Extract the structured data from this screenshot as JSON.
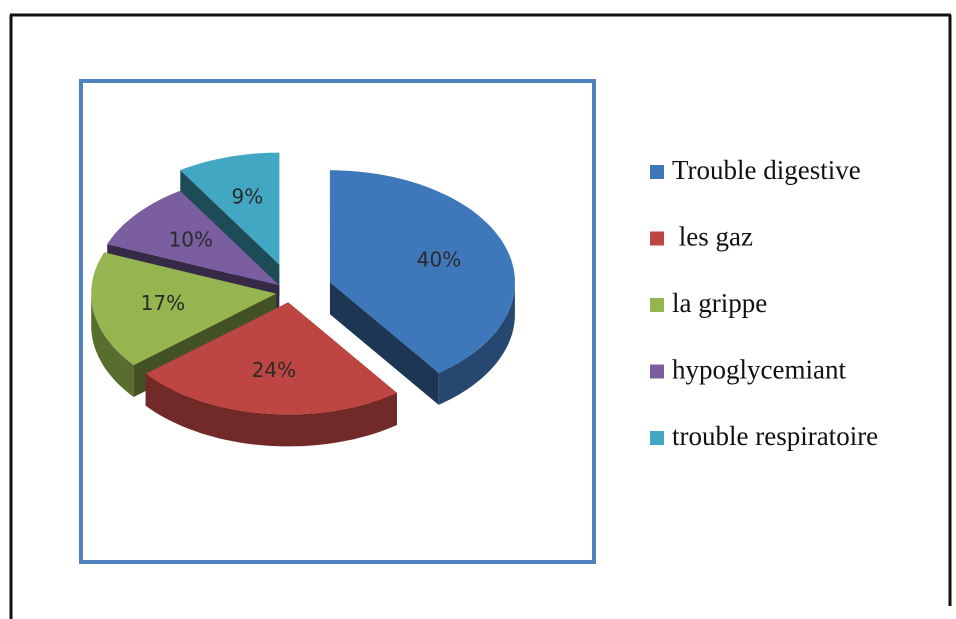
{
  "chart_data": {
    "type": "pie",
    "categories": [
      "Trouble digestive",
      " les gaz",
      "la grippe",
      "hypoglycemiant",
      "trouble respiratoire"
    ],
    "values": [
      40,
      24,
      17,
      10,
      9
    ],
    "value_labels": [
      "40%",
      "24%",
      "17%",
      "10%",
      "9%"
    ],
    "colors": [
      "#3f78ba",
      "#be4642",
      "#94b54f",
      "#7a5ea0",
      "#41a7c3"
    ],
    "legend": "right"
  }
}
